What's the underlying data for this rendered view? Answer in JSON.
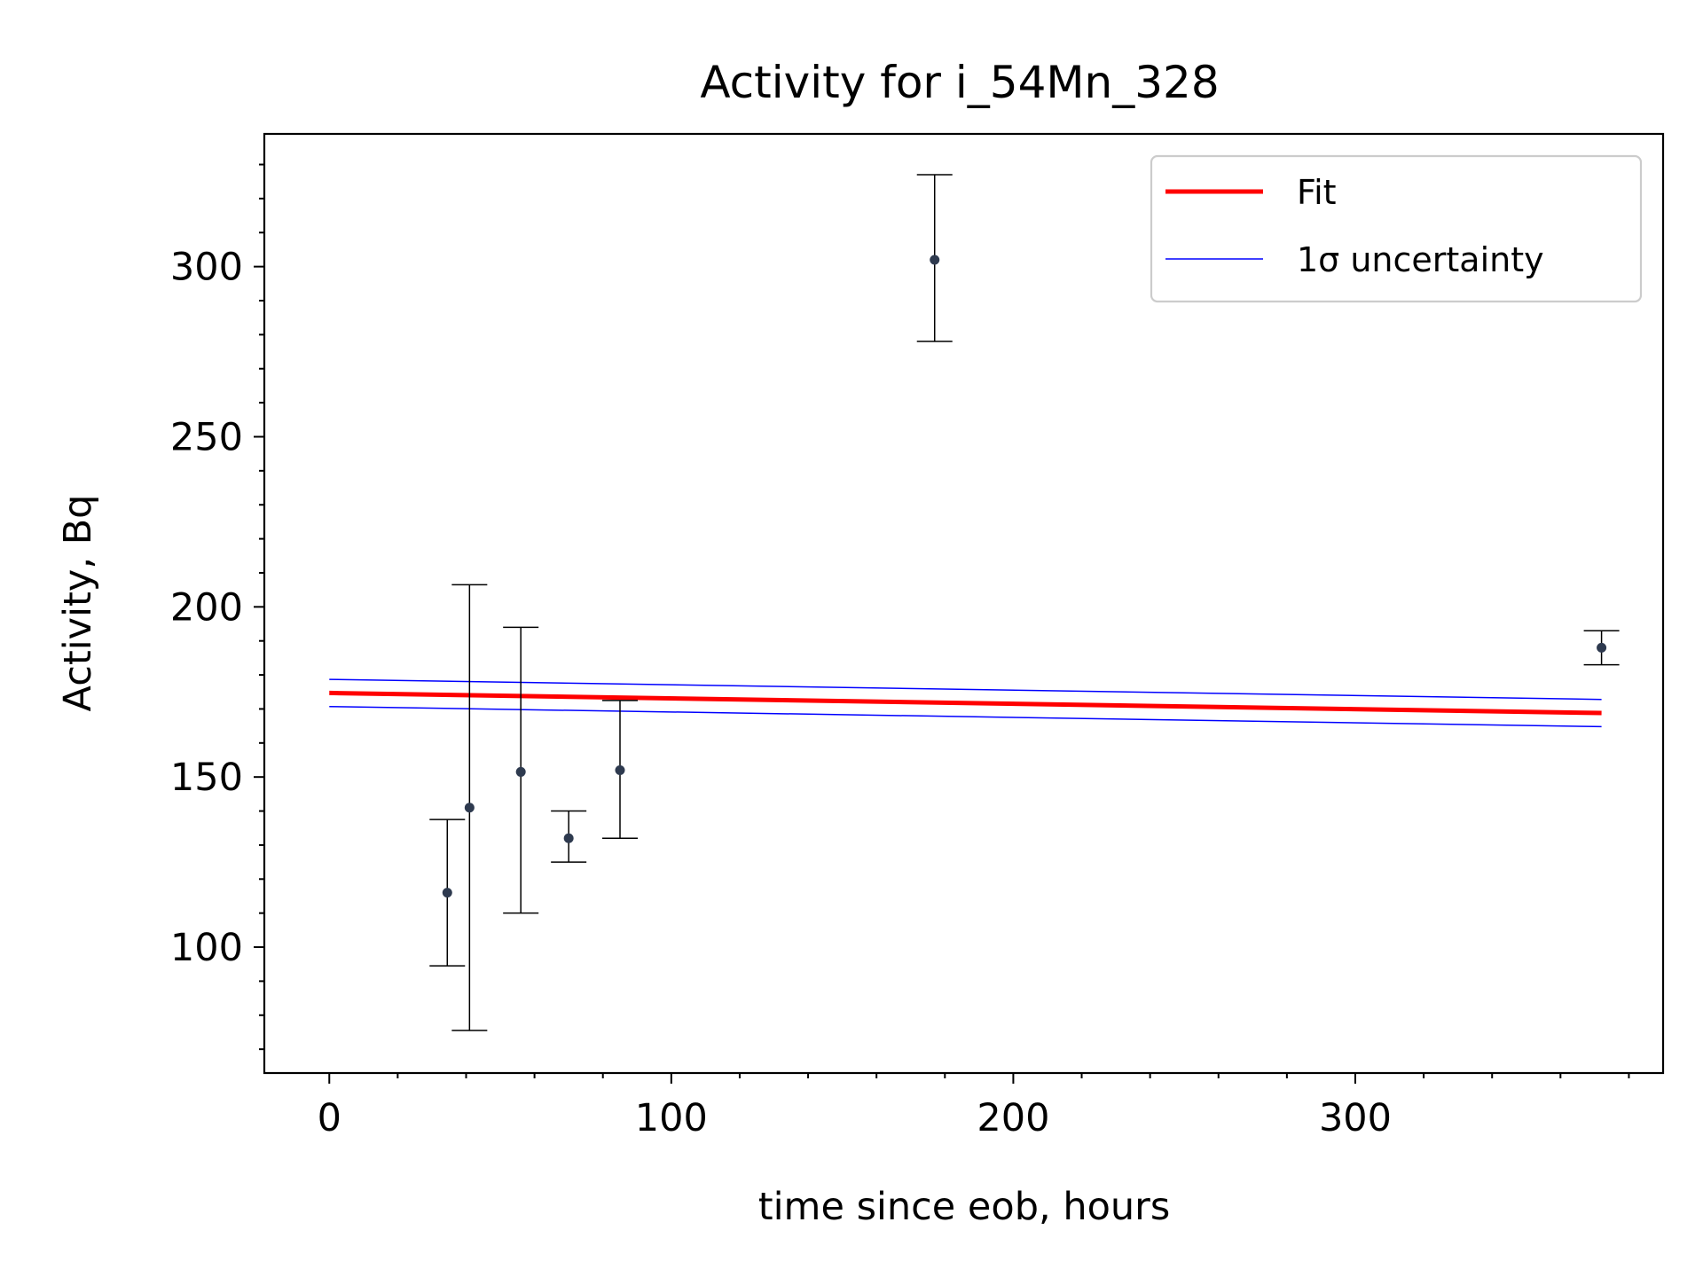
{
  "chart_data": {
    "type": "scatter",
    "title": "Activity for i_54Mn_328",
    "xlabel": "time since eob, hours",
    "ylabel": "Activity, Bq",
    "xlim": [
      -19,
      390
    ],
    "ylim": [
      63,
      339
    ],
    "xticks": [
      0,
      100,
      200,
      300
    ],
    "yticks": [
      100,
      150,
      200,
      250,
      300
    ],
    "grid": false,
    "legend_position": "top-right",
    "legend": [
      {
        "label": "Fit",
        "color": "#ff0000",
        "style": "thick-line"
      },
      {
        "label": "1σ uncertainty",
        "color": "#0000ff",
        "style": "thin-line"
      }
    ],
    "measurements": {
      "color": "#2e3a4f",
      "points": [
        {
          "x": 34.5,
          "y": 116,
          "yerr_low": 21.5,
          "yerr_high": 21.5
        },
        {
          "x": 41,
          "y": 141,
          "yerr_low": 65.5,
          "yerr_high": 65.5
        },
        {
          "x": 56,
          "y": 151.5,
          "yerr_low": 41.5,
          "yerr_high": 42.5
        },
        {
          "x": 70,
          "y": 132,
          "yerr_low": 7,
          "yerr_high": 8
        },
        {
          "x": 85,
          "y": 152,
          "yerr_low": 20,
          "yerr_high": 20.5
        },
        {
          "x": 177,
          "y": 302,
          "yerr_low": 24,
          "yerr_high": 25
        },
        {
          "x": 372,
          "y": 188,
          "yerr_low": 5,
          "yerr_high": 5
        }
      ]
    },
    "fit": {
      "color": "#ff0000",
      "x": [
        0,
        372
      ],
      "y": [
        174.7,
        168.8
      ]
    },
    "uncertainty_bands": {
      "color": "#0000ff",
      "upper": {
        "x": [
          0,
          372
        ],
        "y": [
          178.7,
          172.8
        ]
      },
      "lower": {
        "x": [
          0,
          372
        ],
        "y": [
          170.7,
          164.8
        ]
      }
    }
  }
}
